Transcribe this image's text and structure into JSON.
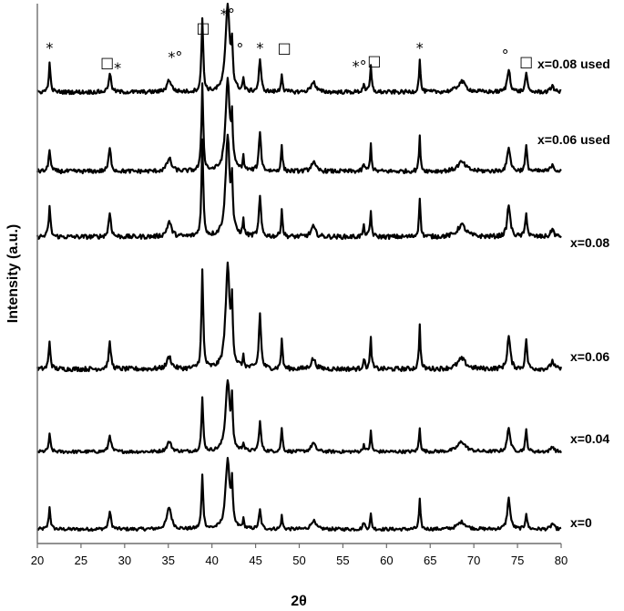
{
  "chart_data": {
    "type": "line",
    "xlabel": "2θ",
    "ylabel": "Intensity (a.u.)",
    "xlim": [
      20,
      80
    ],
    "xticks": [
      20,
      25,
      30,
      35,
      40,
      45,
      50,
      55,
      60,
      65,
      70,
      75,
      80
    ],
    "y_ticks_shown": false,
    "grid": false,
    "peaks_2theta": [
      21.4,
      28.3,
      35.1,
      38.9,
      41.8,
      42.3,
      43.6,
      45.5,
      48.0,
      51.6,
      57.4,
      58.2,
      63.8,
      68.6,
      74.0,
      76.0,
      79.0
    ],
    "series": [
      {
        "name": "x=0",
        "intensities": [
          0.3,
          0.24,
          0.3,
          0.73,
          0.96,
          0.52,
          0.12,
          0.26,
          0.18,
          0.12,
          0.1,
          0.2,
          0.4,
          0.1,
          0.42,
          0.22,
          0.08
        ]
      },
      {
        "name": "x=0.04",
        "intensities": [
          0.24,
          0.24,
          0.14,
          0.74,
          1.0,
          0.6,
          0.12,
          0.42,
          0.34,
          0.12,
          0.1,
          0.28,
          0.34,
          0.14,
          0.34,
          0.3,
          0.08
        ]
      },
      {
        "name": "x=0.06",
        "intensities": [
          0.27,
          0.25,
          0.12,
          0.96,
          1.0,
          0.55,
          0.1,
          0.55,
          0.3,
          0.1,
          0.1,
          0.3,
          0.43,
          0.1,
          0.32,
          0.3,
          0.08
        ]
      },
      {
        "name": "x=0.08",
        "intensities": [
          0.3,
          0.24,
          0.15,
          0.95,
          1.0,
          0.45,
          0.15,
          0.4,
          0.28,
          0.1,
          0.1,
          0.25,
          0.4,
          0.12,
          0.32,
          0.25,
          0.08
        ]
      },
      {
        "name": "x=0.06 used",
        "intensities": [
          0.25,
          0.25,
          0.14,
          0.94,
          1.0,
          0.45,
          0.14,
          0.44,
          0.28,
          0.1,
          0.08,
          0.29,
          0.37,
          0.1,
          0.27,
          0.28,
          0.08
        ]
      },
      {
        "name": "x=0.08 used",
        "intensities": [
          0.32,
          0.22,
          0.14,
          0.84,
          1.0,
          0.45,
          0.14,
          0.38,
          0.22,
          0.12,
          0.1,
          0.3,
          0.38,
          0.12,
          0.26,
          0.24,
          0.08
        ]
      }
    ],
    "phase_markers": [
      {
        "symbol": "*",
        "x": 21.4
      },
      {
        "symbol": "□",
        "x": 28.0
      },
      {
        "symbol": "*",
        "x": 29.2
      },
      {
        "symbol": "*°",
        "x": 35.8
      },
      {
        "symbol": "□",
        "x": 39.0
      },
      {
        "symbol": "*°",
        "x": 41.8
      },
      {
        "symbol": "°",
        "x": 43.2
      },
      {
        "symbol": "*",
        "x": 45.5
      },
      {
        "symbol": "□",
        "x": 48.3
      },
      {
        "symbol": "*°",
        "x": 56.9
      },
      {
        "symbol": "□",
        "x": 58.6
      },
      {
        "symbol": "*",
        "x": 63.8
      },
      {
        "symbol": "°",
        "x": 73.6
      },
      {
        "symbol": "□",
        "x": 76.0
      }
    ]
  }
}
